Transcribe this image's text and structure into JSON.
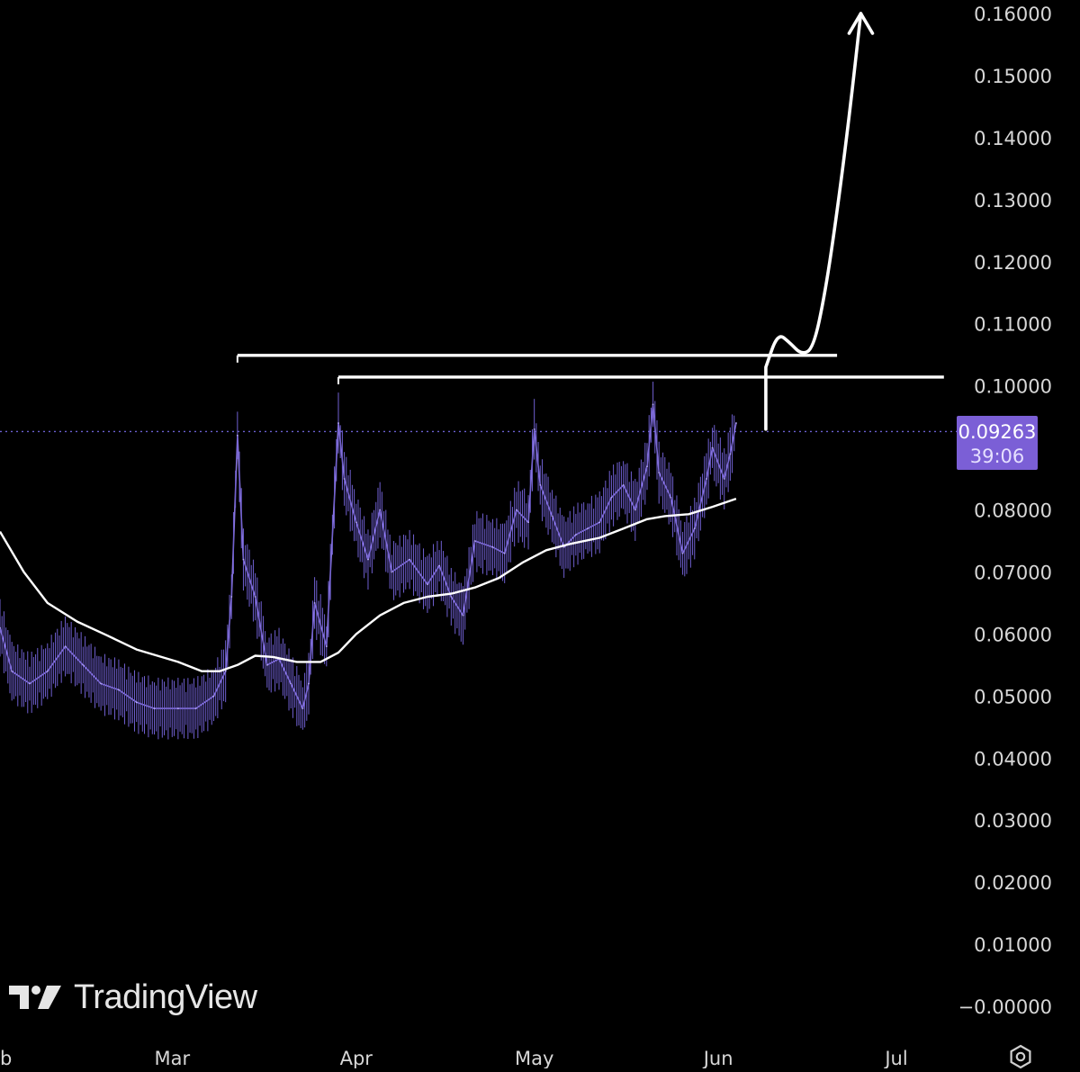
{
  "chart_data": {
    "type": "line",
    "title": "",
    "xlabel": "",
    "ylabel": "",
    "x_ticks": [
      "b",
      "Mar",
      "Apr",
      "May",
      "Jun",
      "Jul"
    ],
    "y_ticks": [
      "0.16000",
      "0.15000",
      "0.14000",
      "0.13000",
      "0.12000",
      "0.11000",
      "0.10000",
      "0.09000",
      "0.08000",
      "0.07000",
      "0.06000",
      "0.05000",
      "0.04000",
      "0.03000",
      "0.02000",
      "0.01000",
      "−0.00000"
    ],
    "y_tick_values": [
      0.16,
      0.15,
      0.14,
      0.13,
      0.12,
      0.11,
      0.1,
      0.09,
      0.08,
      0.07,
      0.06,
      0.05,
      0.04,
      0.03,
      0.02,
      0.01,
      0.0
    ],
    "ylim": [
      -0.001,
      0.162
    ],
    "x_axis_dates": [
      "Feb 1",
      "Mar 1",
      "Apr 1",
      "May 1",
      "Jun 1",
      "Jul 1"
    ],
    "xlim": [
      "Feb 1",
      "Jul 11"
    ],
    "grid": false,
    "last_price": "0.09263",
    "countdown": "39:06",
    "price_series": {
      "color": "#8f7ae8",
      "points": [
        [
          "Feb 1",
          0.061
        ],
        [
          "Feb 3",
          0.054
        ],
        [
          "Feb 6",
          0.052
        ],
        [
          "Feb 9",
          0.054
        ],
        [
          "Feb 12",
          0.058
        ],
        [
          "Feb 15",
          0.055
        ],
        [
          "Feb 18",
          0.052
        ],
        [
          "Feb 21",
          0.051
        ],
        [
          "Feb 24",
          0.049
        ],
        [
          "Feb 27",
          0.048
        ],
        [
          "Mar 2",
          0.048
        ],
        [
          "Mar 5",
          0.048
        ],
        [
          "Mar 8",
          0.05
        ],
        [
          "Mar 10",
          0.054
        ],
        [
          "Mar 11",
          0.066
        ],
        [
          "Mar 12",
          0.092
        ],
        [
          "Mar 13",
          0.072
        ],
        [
          "Mar 15",
          0.066
        ],
        [
          "Mar 17",
          0.055
        ],
        [
          "Mar 19",
          0.056
        ],
        [
          "Mar 21",
          0.052
        ],
        [
          "Mar 23",
          0.048
        ],
        [
          "Mar 24",
          0.052
        ],
        [
          "Mar 25",
          0.065
        ],
        [
          "Mar 27",
          0.058
        ],
        [
          "Mar 29",
          0.094
        ],
        [
          "Mar 30",
          0.085
        ],
        [
          "Apr 1",
          0.078
        ],
        [
          "Apr 3",
          0.072
        ],
        [
          "Apr 5",
          0.08
        ],
        [
          "Apr 7",
          0.07
        ],
        [
          "Apr 10",
          0.072
        ],
        [
          "Apr 13",
          0.068
        ],
        [
          "Apr 15",
          0.071
        ],
        [
          "Apr 17",
          0.066
        ],
        [
          "Apr 19",
          0.063
        ],
        [
          "Apr 21",
          0.075
        ],
        [
          "Apr 24",
          0.074
        ],
        [
          "Apr 26",
          0.073
        ],
        [
          "Apr 28",
          0.08
        ],
        [
          "Apr 30",
          0.078
        ],
        [
          "May 1",
          0.093
        ],
        [
          "May 2",
          0.084
        ],
        [
          "May 4",
          0.079
        ],
        [
          "May 6",
          0.074
        ],
        [
          "May 8",
          0.076
        ],
        [
          "May 10",
          0.077
        ],
        [
          "May 12",
          0.078
        ],
        [
          "May 14",
          0.082
        ],
        [
          "May 16",
          0.084
        ],
        [
          "May 18",
          0.08
        ],
        [
          "May 20",
          0.087
        ],
        [
          "May 21",
          0.097
        ],
        [
          "May 22",
          0.086
        ],
        [
          "May 24",
          0.082
        ],
        [
          "May 26",
          0.073
        ],
        [
          "May 28",
          0.077
        ],
        [
          "May 30",
          0.085
        ],
        [
          "May 31",
          0.09
        ],
        [
          "Jun 2",
          0.085
        ],
        [
          "Jun 3",
          0.089
        ],
        [
          "Jun 4",
          0.094
        ]
      ]
    },
    "moving_average": {
      "color": "#ffffff",
      "points": [
        [
          "Feb 1",
          0.0765
        ],
        [
          "Feb 5",
          0.07
        ],
        [
          "Feb 9",
          0.065
        ],
        [
          "Feb 14",
          0.062
        ],
        [
          "Feb 19",
          0.0598
        ],
        [
          "Feb 24",
          0.0575
        ],
        [
          "Mar 2",
          0.0555
        ],
        [
          "Mar 6",
          0.054
        ],
        [
          "Mar 9",
          0.054
        ],
        [
          "Mar 12",
          0.055
        ],
        [
          "Mar 15",
          0.0565
        ],
        [
          "Mar 18",
          0.0563
        ],
        [
          "Mar 22",
          0.0555
        ],
        [
          "Mar 26",
          0.0555
        ],
        [
          "Mar 29",
          0.057
        ],
        [
          "Apr 1",
          0.06
        ],
        [
          "Apr 5",
          0.063
        ],
        [
          "Apr 9",
          0.065
        ],
        [
          "Apr 13",
          0.066
        ],
        [
          "Apr 17",
          0.0665
        ],
        [
          "Apr 21",
          0.0675
        ],
        [
          "Apr 25",
          0.069
        ],
        [
          "Apr 29",
          0.0715
        ],
        [
          "May 3",
          0.0735
        ],
        [
          "May 7",
          0.0745
        ],
        [
          "May 12",
          0.0755
        ],
        [
          "May 16",
          0.077
        ],
        [
          "May 20",
          0.0785
        ],
        [
          "May 23",
          0.079
        ],
        [
          "May 27",
          0.0793
        ],
        [
          "May 31",
          0.0805
        ],
        [
          "Jun 4",
          0.0818
        ]
      ]
    },
    "annotations": {
      "resistance_1": {
        "value": 0.1049,
        "start": "Mar 12",
        "end": "Jun 21",
        "color": "#ffffff"
      },
      "resistance_2": {
        "value": 0.1014,
        "start": "Mar 29",
        "end": "Jul 9",
        "color": "#ffffff"
      },
      "current_price_line": {
        "value": 0.09263,
        "color": "#6b5fd0"
      },
      "projected_path": {
        "color": "#ffffff",
        "points": [
          [
            "Jun 9",
            0.093
          ],
          [
            "Jun 9",
            0.103
          ],
          [
            "Jun 11",
            0.1085
          ],
          [
            "Jun 13",
            0.107
          ],
          [
            "Jun 15",
            0.105
          ],
          [
            "Jun 17",
            0.106
          ],
          [
            "Jun 19",
            0.115
          ],
          [
            "Jun 21",
            0.128
          ],
          [
            "Jun 23",
            0.143
          ],
          [
            "Jun 25",
            0.16
          ]
        ]
      }
    }
  },
  "watermark": "TradingView",
  "icons": {
    "settings": "settings-gear-icon",
    "logo": "tradingview-logo-icon"
  }
}
